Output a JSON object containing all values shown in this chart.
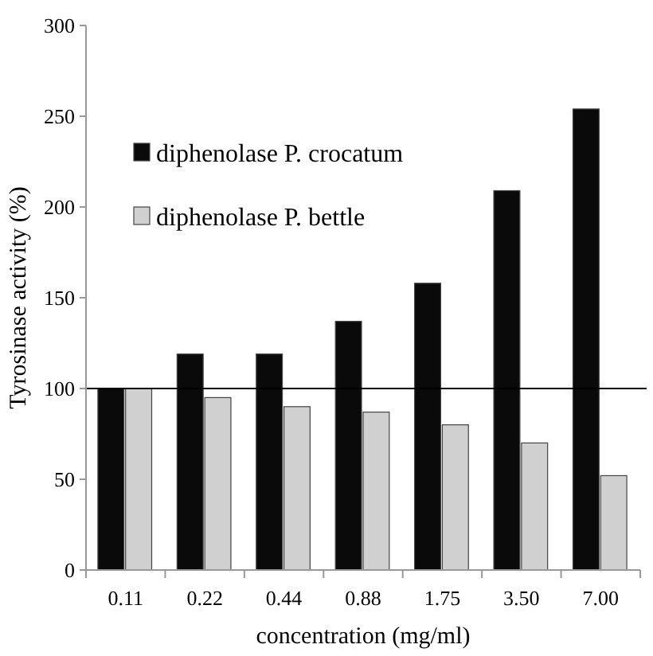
{
  "chart_data": {
    "type": "bar",
    "xlabel": "concentration (mg/ml)",
    "ylabel": "Tyrosinase activity (%)",
    "categories": [
      "0.11",
      "0.22",
      "0.44",
      "0.88",
      "1.75",
      "3.50",
      "7.00"
    ],
    "series": [
      {
        "name": "diphenolase P. crocatum",
        "color": "#0a0a0a",
        "values": [
          100,
          119,
          119,
          137,
          158,
          209,
          254
        ]
      },
      {
        "name": "diphenolase P. bettle",
        "color": "#d0d0d0",
        "values": [
          100,
          95,
          90,
          87,
          80,
          70,
          52
        ]
      }
    ],
    "ylim": [
      0,
      300
    ],
    "yticks": [
      0,
      50,
      100,
      150,
      200,
      250,
      300
    ],
    "ref_lines": [
      {
        "axis": "y",
        "value": 100,
        "color": "#000000"
      }
    ],
    "legend": "top left"
  }
}
